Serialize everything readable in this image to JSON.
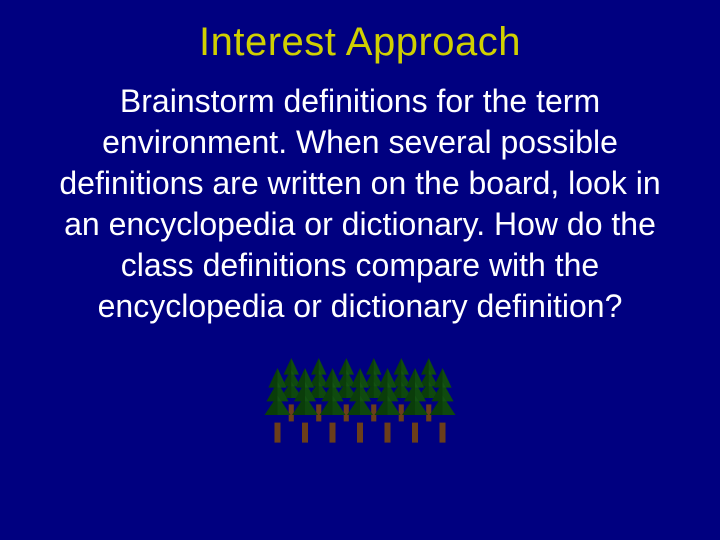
{
  "slide": {
    "background_color": "#000080",
    "title": "Interest Approach",
    "title_color": "#d0d000",
    "body": "Brainstorm definitions for the term environment.  When several possible definitions are written on the board, look in an encyclopedia or dictionary.  How do the class definitions compare with the encyclopedia or dictionary definition?",
    "body_color": "#ffffff",
    "title_fontsize": 40,
    "body_fontsize": 32
  },
  "trees": {
    "canopy_color": "#0a3d0a",
    "canopy_highlight": "#1d6b1d",
    "trunk_color": "#6b3e1a",
    "count": 7
  }
}
